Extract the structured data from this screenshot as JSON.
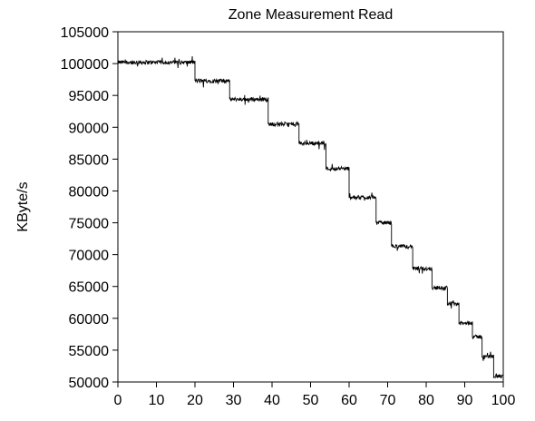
{
  "chart_data": {
    "type": "line",
    "title": "Zone Measurement Read",
    "xlabel": "",
    "ylabel": "KByte/s",
    "xlim": [
      0,
      100
    ],
    "ylim": [
      50000,
      105000
    ],
    "x_ticks": [
      0,
      10,
      20,
      30,
      40,
      50,
      60,
      70,
      80,
      90,
      100
    ],
    "y_ticks": [
      50000,
      55000,
      60000,
      65000,
      70000,
      75000,
      80000,
      85000,
      90000,
      95000,
      100000,
      105000
    ],
    "grid": false,
    "legend": "none",
    "line_color": "#000000",
    "series": [
      {
        "segments": [
          {
            "x_start": 0,
            "x_end": 20,
            "value": 100200
          },
          {
            "x_start": 20,
            "x_end": 29,
            "value": 97300
          },
          {
            "x_start": 29,
            "x_end": 39,
            "value": 94400
          },
          {
            "x_start": 39,
            "x_end": 47,
            "value": 90500
          },
          {
            "x_start": 47,
            "x_end": 54,
            "value": 87500
          },
          {
            "x_start": 54,
            "x_end": 60,
            "value": 83500
          },
          {
            "x_start": 60,
            "x_end": 67,
            "value": 79000
          },
          {
            "x_start": 67,
            "x_end": 71,
            "value": 75000
          },
          {
            "x_start": 71,
            "x_end": 76.5,
            "value": 71300
          },
          {
            "x_start": 76.5,
            "x_end": 81.5,
            "value": 67800
          },
          {
            "x_start": 81.5,
            "x_end": 85.5,
            "value": 64800
          },
          {
            "x_start": 85.5,
            "x_end": 88.5,
            "value": 62300
          },
          {
            "x_start": 88.5,
            "x_end": 92,
            "value": 59200
          },
          {
            "x_start": 92,
            "x_end": 94.5,
            "value": 57100
          },
          {
            "x_start": 94.5,
            "x_end": 97.5,
            "value": 54000
          },
          {
            "x_start": 97.5,
            "x_end": 100,
            "value": 50900
          }
        ]
      }
    ]
  }
}
